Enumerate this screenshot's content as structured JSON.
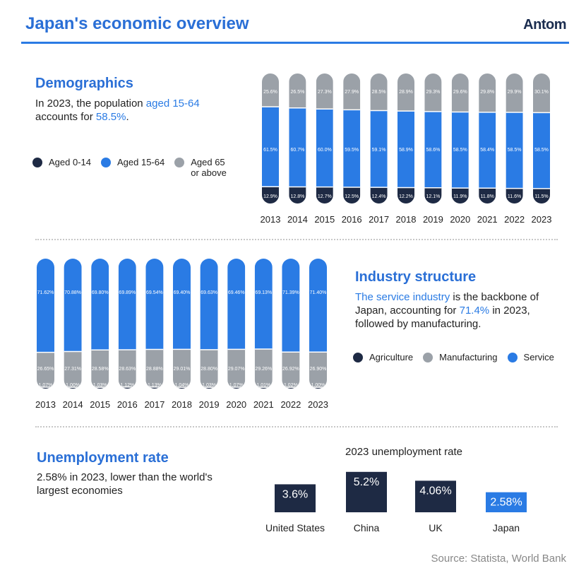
{
  "header": {
    "title": "Japan's economic overview",
    "logo": "Antom"
  },
  "demographics": {
    "heading": "Demographics",
    "text_pre": "In 2023, the population ",
    "text_hl1": "aged 15-64",
    "text_mid": "accounts for ",
    "text_hl2": "58.5%",
    "text_end": ".",
    "legend": [
      "Aged 0-14",
      "Aged 15-64",
      "Aged 65 or above"
    ]
  },
  "industry": {
    "heading": "Industry structure",
    "text_hl1": "The service industry",
    "text_mid1": " is the backbone of Japan, accounting for ",
    "text_hl2": "71.4%",
    "text_end": " in 2023, followed by manufacturing.",
    "legend": [
      "Agriculture",
      "Manufacturing",
      "Service"
    ]
  },
  "unemployment": {
    "heading": "Unemployment rate",
    "text": "2.58% in 2023, lower than the world's largest economies"
  },
  "source": "Source: Statista, World Bank",
  "colors": {
    "dark": "#1e2a44",
    "blue": "#2a7be4",
    "gray": "#9ba1a8",
    "accent": "#2a6fd6"
  },
  "chart_data": [
    {
      "type": "bar",
      "stacked": true,
      "categories": [
        "2013",
        "2014",
        "2015",
        "2016",
        "2017",
        "2018",
        "2019",
        "2020",
        "2021",
        "2022",
        "2023"
      ],
      "series": [
        {
          "name": "Aged 0-14",
          "values": [
            12.9,
            12.8,
            12.7,
            12.5,
            12.4,
            12.2,
            12.1,
            11.9,
            11.8,
            11.6,
            11.5
          ],
          "labels": [
            "12.9%",
            "12.8%",
            "12.7%",
            "12.5%",
            "12.4%",
            "12.2%",
            "12.1%",
            "11.9%",
            "11.8%",
            "11.6%",
            "11.5%"
          ]
        },
        {
          "name": "Aged 15-64",
          "values": [
            61.5,
            60.7,
            60.0,
            59.5,
            59.1,
            58.9,
            58.6,
            58.5,
            58.4,
            58.5,
            58.5
          ],
          "labels": [
            "61.5%",
            "60.7%",
            "60.0%",
            "59.5%",
            "59.1%",
            "58.9%",
            "58.6%",
            "58.5%",
            "58.4%",
            "58.5%",
            "58.5%"
          ]
        },
        {
          "name": "Aged 65 or above",
          "values": [
            25.6,
            26.5,
            27.3,
            27.9,
            28.5,
            28.9,
            29.3,
            29.6,
            29.8,
            29.9,
            30.1
          ],
          "labels": [
            "25.6%",
            "26.5%",
            "27.3%",
            "27.9%",
            "28.5%",
            "28.9%",
            "29.3%",
            "29.6%",
            "29.8%",
            "29.9%",
            "30.1%"
          ]
        }
      ]
    },
    {
      "type": "bar",
      "stacked": true,
      "categories": [
        "2013",
        "2014",
        "2015",
        "2016",
        "2017",
        "2018",
        "2019",
        "2020",
        "2021",
        "2022",
        "2023"
      ],
      "series": [
        {
          "name": "Agriculture",
          "values": [
            1.07,
            1.0,
            1.03,
            1.12,
            1.13,
            1.04,
            1.03,
            1.07,
            1.01,
            1.02,
            1.0
          ],
          "labels": [
            "1.07%",
            "1.00%",
            "1.03%",
            "1.12%",
            "1.13%",
            "1.04%",
            "1.03%",
            "1.07%",
            "1.01%",
            "1.02%",
            "1.00%"
          ]
        },
        {
          "name": "Manufacturing",
          "values": [
            26.65,
            27.31,
            28.58,
            28.63,
            28.88,
            29.01,
            28.8,
            29.07,
            29.26,
            26.92,
            26.9
          ],
          "labels": [
            "26.65%",
            "27.31%",
            "28.58%",
            "28.63%",
            "28.88%",
            "29.01%",
            "28.80%",
            "29.07%",
            "29.26%",
            "26.92%",
            "26.90%"
          ]
        },
        {
          "name": "Service",
          "values": [
            71.62,
            70.88,
            69.8,
            69.89,
            69.54,
            69.4,
            69.63,
            69.46,
            69.13,
            71.39,
            71.4
          ],
          "labels": [
            "71.62%",
            "70.88%",
            "69.80%",
            "69.89%",
            "69.54%",
            "69.40%",
            "69.63%",
            "69.46%",
            "69.13%",
            "71.39%",
            "71.40%"
          ]
        }
      ]
    },
    {
      "type": "bar",
      "title": "2023 unemployment rate",
      "categories": [
        "United States",
        "China",
        "UK",
        "Japan"
      ],
      "values": [
        3.6,
        5.2,
        4.06,
        2.58
      ],
      "labels": [
        "3.6%",
        "5.2%",
        "4.06%",
        "2.58%"
      ],
      "highlight": "Japan"
    }
  ]
}
